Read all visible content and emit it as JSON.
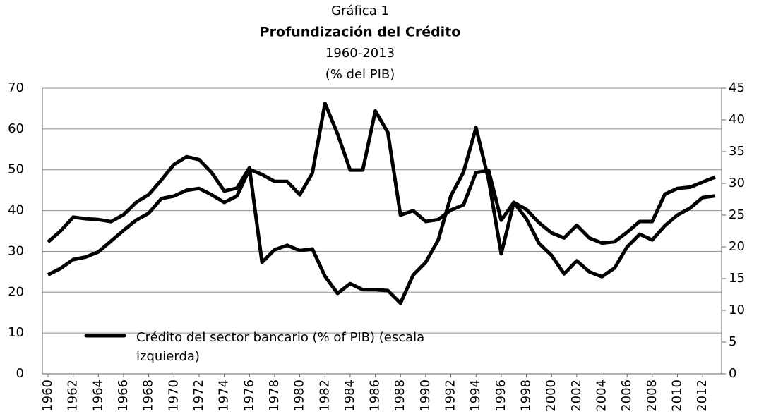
{
  "chart_data": {
    "type": "line",
    "title": "Gráfica 1",
    "subtitle": "Profundización del Crédito",
    "period": "1960-2013",
    "units": "(%  del PIB)",
    "x": [
      1960,
      1961,
      1962,
      1963,
      1964,
      1965,
      1966,
      1967,
      1968,
      1969,
      1970,
      1971,
      1972,
      1973,
      1974,
      1975,
      1976,
      1977,
      1978,
      1979,
      1980,
      1981,
      1982,
      1983,
      1984,
      1985,
      1986,
      1987,
      1988,
      1989,
      1990,
      1991,
      1992,
      1993,
      1994,
      1995,
      1996,
      1997,
      1998,
      1999,
      2000,
      2001,
      2002,
      2003,
      2004,
      2005,
      2006,
      2007,
      2008,
      2009,
      2010,
      2011,
      2012,
      2013
    ],
    "xlim": [
      1960,
      2013
    ],
    "xticks": [
      1960,
      1962,
      1964,
      1966,
      1968,
      1970,
      1972,
      1974,
      1976,
      1978,
      1980,
      1982,
      1984,
      1986,
      1988,
      1990,
      1992,
      1994,
      1996,
      1998,
      2000,
      2002,
      2004,
      2006,
      2008,
      2010,
      2012
    ],
    "ylim": [
      0,
      70
    ],
    "yticks": [
      0,
      10,
      20,
      30,
      40,
      50,
      60,
      70
    ],
    "y2lim": [
      0,
      45
    ],
    "y2ticks": [
      0,
      5,
      10,
      15,
      20,
      25,
      30,
      35,
      40,
      45
    ],
    "grid": true,
    "series": [
      {
        "name": "Crédito del sector bancario  (% of PIB) (escala izquierda)",
        "color": "#000000",
        "values": [
          32.3,
          35,
          38.4,
          38,
          37.8,
          37.3,
          39,
          42,
          43.9,
          47.5,
          51.3,
          53.2,
          52.5,
          49.3,
          44.8,
          45.5,
          50.5,
          27.3,
          30.4,
          31.5,
          30.2,
          30.6,
          23.9,
          19.7,
          22.1,
          20.6,
          20.6,
          20.4,
          17.3,
          24.2,
          27.3,
          32.8,
          43.6,
          49.4,
          60.3,
          47.5,
          29.4,
          42,
          38,
          32,
          29,
          24.5,
          27.7,
          25,
          23.8,
          25.9,
          31.1,
          34.2,
          32.8,
          36.3,
          38.9,
          40.6,
          43.2,
          43.6
        ]
      },
      {
        "color": "#000000",
        "axis": "y2",
        "values": [
          15.6,
          16.6,
          18,
          18.4,
          19.2,
          20.9,
          22.6,
          24.2,
          25.3,
          27.6,
          28,
          28.9,
          29.2,
          28.2,
          27,
          28,
          32.2,
          31.4,
          30.3,
          30.3,
          28.2,
          31.6,
          42.6,
          37.8,
          32.1,
          32.1,
          41.4,
          38,
          25,
          25.7,
          24,
          24.3,
          25.8,
          26.6,
          31.7,
          32,
          24.2,
          27,
          25.9,
          23.8,
          22.2,
          21.4,
          23.4,
          21.4,
          20.6,
          20.8,
          22.3,
          24,
          24,
          28.3,
          29.2,
          29.4,
          30.2,
          31
        ]
      }
    ]
  }
}
